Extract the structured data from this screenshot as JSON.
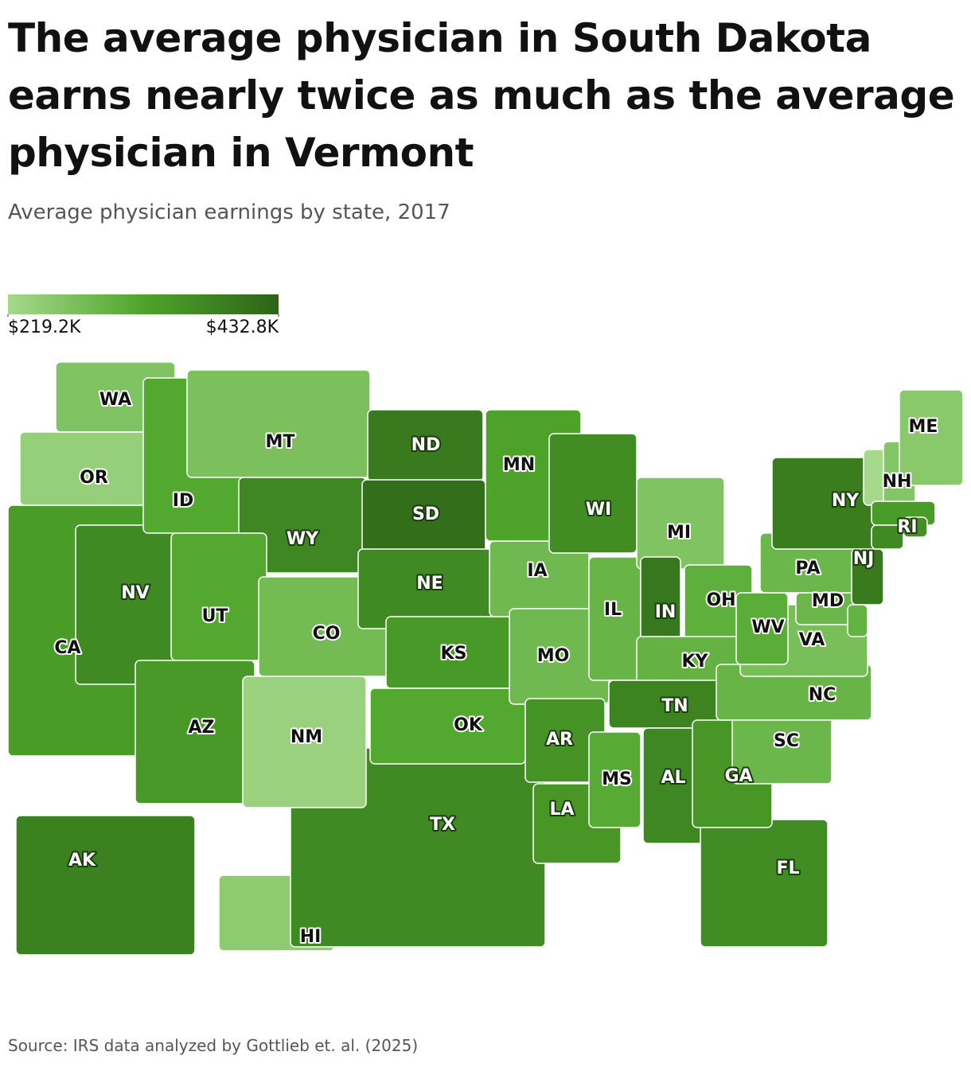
{
  "chart_data": {
    "type": "choropleth",
    "title": "The average physician in South Dakota earns nearly twice as much as the average physician in Vermont",
    "subtitle": "Average physician earnings by state, 2017",
    "source": "Source: IRS data analyzed by Gottlieb et. al. (2025)",
    "scale": [
      {
        "value": 219.2,
        "label": "$219.2K"
      },
      {
        "value": 432.8,
        "label": "$432.8K"
      }
    ],
    "colors": [
      "#a6d98c",
      "#4ea52a",
      "#2d6318"
    ],
    "categories": [
      "AK",
      "HI",
      "CA",
      "TX",
      "WA",
      "OR",
      "NV",
      "ID",
      "MT",
      "WY",
      "UT",
      "CO",
      "AZ",
      "NM",
      "ND",
      "SD",
      "NE",
      "KS",
      "OK",
      "MN",
      "IA",
      "MO",
      "AR",
      "LA",
      "WI",
      "IL",
      "MI",
      "IN",
      "OH",
      "KY",
      "TN",
      "MS",
      "AL",
      "FL",
      "GA",
      "SC",
      "NC",
      "VA",
      "WV",
      "MD",
      "PA",
      "NY",
      null,
      "NH",
      "ME",
      null,
      "RI",
      null,
      "NJ",
      null
    ],
    "values": [
      385,
      250,
      340,
      370,
      265,
      240,
      370,
      320,
      270,
      375,
      320,
      280,
      345,
      235,
      395,
      415,
      370,
      345,
      320,
      330,
      285,
      285,
      355,
      350,
      365,
      295,
      265,
      400,
      305,
      300,
      380,
      315,
      375,
      365,
      350,
      290,
      295,
      275,
      310,
      290,
      290,
      390,
      219.2,
      260,
      255,
      340,
      360,
      370,
      395,
      300
    ]
  }
}
